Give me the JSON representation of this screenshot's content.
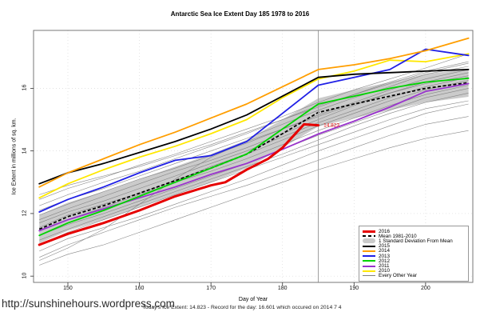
{
  "title": "Antarctic Sea Ice Extent Day 185 1978 to 2016",
  "axes": {
    "x_label": "Day of Year",
    "y_label": "Ice Extent in millions of sq. km."
  },
  "footer": {
    "url": "http://sunshinehours.wordpress.com",
    "status": "Today's Ice Extent: 14.823  - Record for the day: 16.601 which occured on 2014 7 4"
  },
  "legend": [
    {
      "label": "2016",
      "color": "#E60000",
      "lw": 3,
      "dash": false
    },
    {
      "label": "Mean 1981-2010",
      "color": "#000000",
      "lw": 2,
      "dash": true
    },
    {
      "label": "1 Standard Deviation From Mean",
      "color": "#CBCBCB",
      "lw": 6,
      "dash": false
    },
    {
      "label": "2015",
      "color": "#000000",
      "lw": 2,
      "dash": false
    },
    {
      "label": "2014",
      "color": "#FF9E00",
      "lw": 2,
      "dash": false
    },
    {
      "label": "2013",
      "color": "#2020E6",
      "lw": 2,
      "dash": false
    },
    {
      "label": "2012",
      "color": "#00D400",
      "lw": 2,
      "dash": false
    },
    {
      "label": "2011",
      "color": "#9933CC",
      "lw": 2,
      "dash": false
    },
    {
      "label": "2010",
      "color": "#FFE800",
      "lw": 2,
      "dash": false
    },
    {
      "label": "Every Other Year",
      "color": "#808080",
      "lw": 1,
      "dash": false
    }
  ],
  "chart_data": {
    "type": "line",
    "title": "Antarctic Sea Ice Extent Day 185 1978 to 2016",
    "xlabel": "Day of Year",
    "ylabel": "Ice Extent in millions of sq. km.",
    "xlim": [
      145.2,
      206.6
    ],
    "ylim": [
      9.8,
      17.85
    ],
    "x_ticks": [
      150,
      160,
      170,
      180,
      190,
      200
    ],
    "y_ticks": [
      10,
      12,
      14,
      16
    ],
    "grid": true,
    "legend_position": "bottom-right",
    "vline_day": 185,
    "annotation": {
      "day": 185.4,
      "value": 14.82,
      "text": "14.823",
      "color": "#E60000"
    },
    "days": [
      146,
      150,
      155,
      160,
      165,
      170,
      175,
      180,
      185,
      190,
      195,
      200,
      206
    ],
    "band": {
      "name": "1 Standard Deviation From Mean",
      "color": "#CBCBCB",
      "upper": [
        11.95,
        12.35,
        12.7,
        13.1,
        13.5,
        13.9,
        14.35,
        15.0,
        15.68,
        15.95,
        16.2,
        16.45,
        16.63
      ],
      "lower": [
        11.05,
        11.45,
        11.8,
        12.2,
        12.6,
        13.0,
        13.45,
        14.1,
        14.78,
        15.05,
        15.3,
        15.55,
        15.73
      ]
    },
    "mean": {
      "name": "Mean 1981-2010",
      "color": "#000000",
      "values": [
        11.5,
        11.9,
        12.25,
        12.65,
        13.05,
        13.45,
        13.9,
        14.55,
        15.23,
        15.5,
        15.75,
        16.0,
        16.18
      ]
    },
    "series": [
      {
        "name": "2011",
        "color": "#9933CC",
        "lw": 1.8,
        "values": [
          11.45,
          11.8,
          12.15,
          12.5,
          12.85,
          13.25,
          13.6,
          14.05,
          14.54,
          14.95,
          15.4,
          15.9,
          16.15
        ]
      },
      {
        "name": "2012",
        "color": "#00D400",
        "lw": 1.8,
        "values": [
          11.3,
          11.7,
          12.1,
          12.55,
          13.0,
          13.45,
          13.9,
          14.7,
          15.5,
          15.75,
          16.0,
          16.2,
          16.32
        ]
      },
      {
        "name": "2010",
        "color": "#FFE800",
        "lw": 1.8,
        "values": [
          12.5,
          12.95,
          13.4,
          13.8,
          14.15,
          14.55,
          15.0,
          15.7,
          16.3,
          16.55,
          16.9,
          16.85,
          17.1
        ]
      },
      {
        "name": "2013",
        "color": "#2020E6",
        "lw": 1.8,
        "values": [
          12.05,
          12.45,
          12.85,
          13.3,
          13.7,
          13.85,
          14.3,
          15.2,
          16.1,
          16.35,
          16.6,
          17.25,
          17.05
        ]
      },
      {
        "name": "2015",
        "color": "#000000",
        "lw": 1.8,
        "values": [
          12.95,
          13.3,
          13.6,
          13.95,
          14.3,
          14.7,
          15.15,
          15.75,
          16.35,
          16.45,
          16.5,
          16.55,
          16.6
        ]
      },
      {
        "name": "2014",
        "color": "#FF9E00",
        "lw": 1.8,
        "values": [
          12.85,
          13.3,
          13.75,
          14.2,
          14.6,
          15.05,
          15.5,
          16.05,
          16.6,
          16.75,
          16.95,
          17.2,
          17.6
        ]
      },
      {
        "name": "2016",
        "color": "#E60000",
        "lw": 3,
        "days": [
          146,
          150,
          155,
          160,
          165,
          170,
          172,
          175,
          178,
          180,
          182,
          183,
          185
        ],
        "values": [
          11.0,
          11.35,
          11.7,
          12.1,
          12.55,
          12.9,
          13.0,
          13.4,
          13.75,
          14.1,
          14.6,
          14.85,
          14.82
        ]
      }
    ],
    "other_years_name": "Every Other Year",
    "other_years_color": "#808080",
    "other_years": [
      [
        10.35,
        10.7,
        11.0,
        11.4,
        11.8,
        12.2,
        12.6,
        13.0,
        13.4,
        13.75,
        14.1,
        14.4,
        14.65
      ],
      [
        10.6,
        11.0,
        11.4,
        11.8,
        12.2,
        12.55,
        12.9,
        13.3,
        13.7,
        14.1,
        14.5,
        14.85,
        15.1
      ],
      [
        10.8,
        11.2,
        11.55,
        11.9,
        12.3,
        12.7,
        13.1,
        13.55,
        14.0,
        14.4,
        14.8,
        15.2,
        15.5
      ],
      [
        11.0,
        11.4,
        11.8,
        12.2,
        12.6,
        13.0,
        13.4,
        13.8,
        14.2,
        14.6,
        15.0,
        15.35,
        15.6
      ],
      [
        11.15,
        11.5,
        11.9,
        12.3,
        12.7,
        13.1,
        13.5,
        13.9,
        14.35,
        14.8,
        15.2,
        15.55,
        15.85
      ],
      [
        11.3,
        11.65,
        12.0,
        12.4,
        12.8,
        13.2,
        13.6,
        14.05,
        14.5,
        14.9,
        15.3,
        15.7,
        16.0
      ],
      [
        11.45,
        11.8,
        12.2,
        12.6,
        13.0,
        13.35,
        13.75,
        14.2,
        14.65,
        15.05,
        15.45,
        15.8,
        16.1
      ],
      [
        11.55,
        11.95,
        12.3,
        12.65,
        13.05,
        13.5,
        13.9,
        14.35,
        14.8,
        15.2,
        15.6,
        15.95,
        16.25
      ],
      [
        11.7,
        12.05,
        12.4,
        12.8,
        13.2,
        13.6,
        14.0,
        14.45,
        14.9,
        15.3,
        15.7,
        16.05,
        16.35
      ],
      [
        11.8,
        12.15,
        12.55,
        12.95,
        13.35,
        13.7,
        14.1,
        14.55,
        15.0,
        15.45,
        15.85,
        16.2,
        16.5
      ],
      [
        11.95,
        12.3,
        12.7,
        13.1,
        13.45,
        13.85,
        14.25,
        14.7,
        15.15,
        15.55,
        15.95,
        16.3,
        16.6
      ],
      [
        12.1,
        12.45,
        12.8,
        13.2,
        13.6,
        14.0,
        14.4,
        14.85,
        15.3,
        15.7,
        16.05,
        16.45,
        16.7
      ],
      [
        12.25,
        12.6,
        13.0,
        13.35,
        13.75,
        14.15,
        14.55,
        15.0,
        15.4,
        15.8,
        16.2,
        16.55,
        16.85
      ],
      [
        12.45,
        12.8,
        13.15,
        13.55,
        13.9,
        14.3,
        14.7,
        15.1,
        15.55,
        15.95,
        16.3,
        16.65,
        17.1
      ],
      [
        10.5,
        10.9,
        11.5,
        12.3,
        13.1,
        13.8,
        14.3,
        14.7,
        15.1,
        15.5,
        15.85,
        16.15,
        16.4
      ],
      [
        12.6,
        12.9,
        13.2,
        13.5,
        13.85,
        14.2,
        14.6,
        15.0,
        15.45,
        15.8,
        16.15,
        16.5,
        16.8
      ]
    ]
  }
}
